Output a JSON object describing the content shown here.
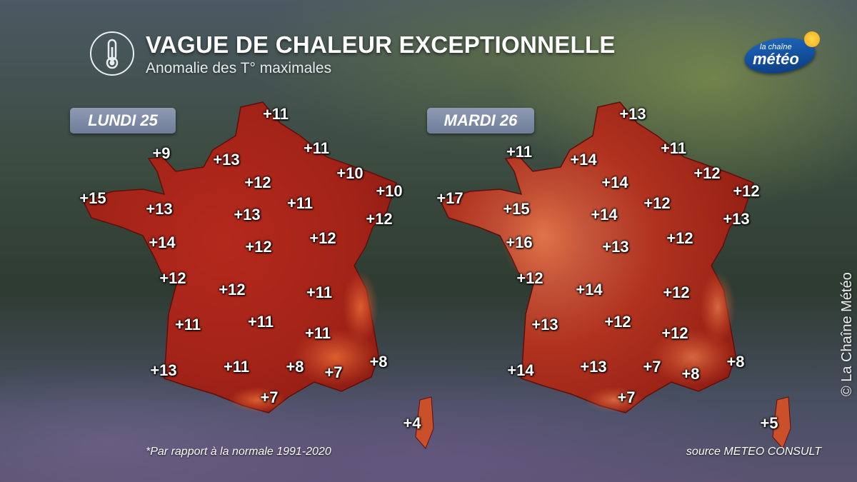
{
  "header": {
    "title": "VAGUE DE CHALEUR EXCEPTIONNELLE",
    "subtitle": "Anomalie des T° maximales",
    "icon": "thermometer-icon"
  },
  "logo": {
    "line1": "la chaîne",
    "line2": "météo"
  },
  "colors": {
    "map_fill": "#b02a1a",
    "map_dark": "#7e1410",
    "map_light": "#d9562c",
    "label_bg": "#7f8ba6"
  },
  "maps": [
    {
      "day": "LUNDI 25",
      "values": [
        "+11",
        "+9",
        "+13",
        "+11",
        "+12",
        "+10",
        "+15",
        "+10",
        "+13",
        "+11",
        "+13",
        "+12",
        "+14",
        "+12",
        "+12",
        "+12",
        "+12",
        "+11",
        "+11",
        "+11",
        "+11",
        "+13",
        "+11",
        "+8",
        "+7",
        "+8",
        "+7",
        "+4"
      ]
    },
    {
      "day": "MARDI 26",
      "values": [
        "+13",
        "+11",
        "+14",
        "+11",
        "+14",
        "+12",
        "+17",
        "+12",
        "+15",
        "+12",
        "+14",
        "+13",
        "+16",
        "+12",
        "+13",
        "+12",
        "+14",
        "+12",
        "+13",
        "+12",
        "+12",
        "+14",
        "+13",
        "+7",
        "+8",
        "+8",
        "+7",
        "+5"
      ]
    }
  ],
  "footnote": "*Par rapport à la normale 1991-2020",
  "source": "source METEO CONSULT",
  "copyright": "© La Chaîne Météo"
}
